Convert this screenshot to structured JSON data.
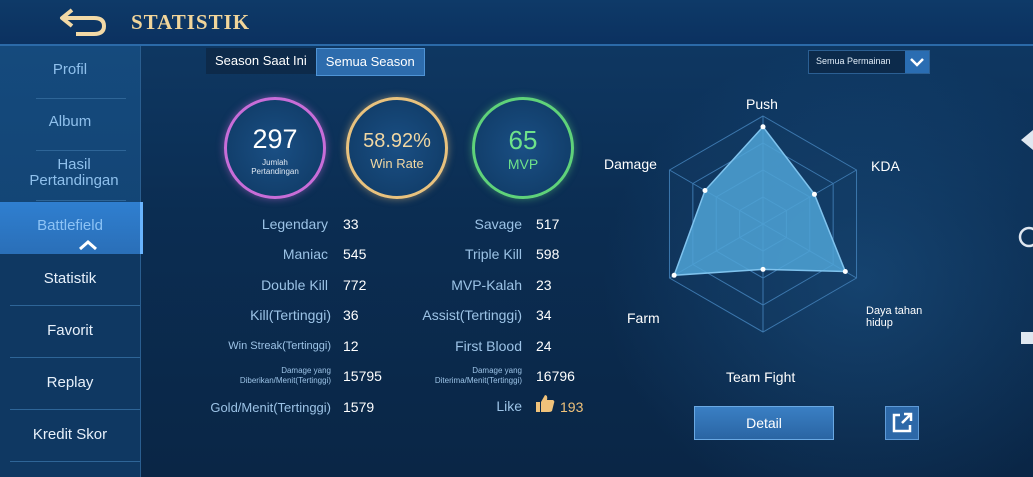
{
  "header": {
    "title": "STATISTIK",
    "back_icon": "back-arrow-icon"
  },
  "sidebar": {
    "items": [
      {
        "label": "Profil"
      },
      {
        "label": "Album"
      },
      {
        "label": "Hasil Pertandingan"
      },
      {
        "label": "Battlefield"
      },
      {
        "label": "Statistik"
      },
      {
        "label": "Favorit"
      },
      {
        "label": "Replay"
      },
      {
        "label": "Kredit Skor"
      }
    ]
  },
  "tabs": [
    {
      "label": "Season Saat Ini"
    },
    {
      "label": "Semua Season"
    }
  ],
  "filter": {
    "selected": "Semua Permainan"
  },
  "summary": {
    "matches": {
      "value": "297",
      "label": "Jumlah Pertandingan"
    },
    "winrate": {
      "value": "58.92%",
      "label": "Win Rate"
    },
    "mvp": {
      "value": "65",
      "label": "MVP"
    }
  },
  "stats": {
    "left": [
      {
        "label": "Legendary",
        "value": "33"
      },
      {
        "label": "Maniac",
        "value": "545"
      },
      {
        "label": "Double Kill",
        "value": "772"
      },
      {
        "label": "Kill(Tertinggi)",
        "value": "36"
      },
      {
        "label": "Win Streak(Tertinggi)",
        "value": "12"
      },
      {
        "label": "Damage yang Diberikan/Menit(Tertinggi)",
        "value": "15795"
      },
      {
        "label": "Gold/Menit(Tertinggi)",
        "value": "1579"
      }
    ],
    "right": [
      {
        "label": "Savage",
        "value": "517"
      },
      {
        "label": "Triple Kill",
        "value": "598"
      },
      {
        "label": "MVP-Kalah",
        "value": "23"
      },
      {
        "label": "Assist(Tertinggi)",
        "value": "34"
      },
      {
        "label": "First Blood",
        "value": "24"
      },
      {
        "label": "Damage yang Diterima/Menit(Tertinggi)",
        "value": "16796"
      },
      {
        "label": "Like",
        "value": "193"
      }
    ]
  },
  "radar": {
    "labels": [
      "Push",
      "KDA",
      "Daya tahan hidup",
      "Team Fight",
      "Farm",
      "Damage"
    ],
    "values": [
      0.9,
      0.55,
      0.88,
      0.42,
      0.95,
      0.62
    ],
    "fill_color": "#4fa3d6"
  },
  "buttons": {
    "detail": "Detail",
    "share_icon": "share-external-icon"
  }
}
